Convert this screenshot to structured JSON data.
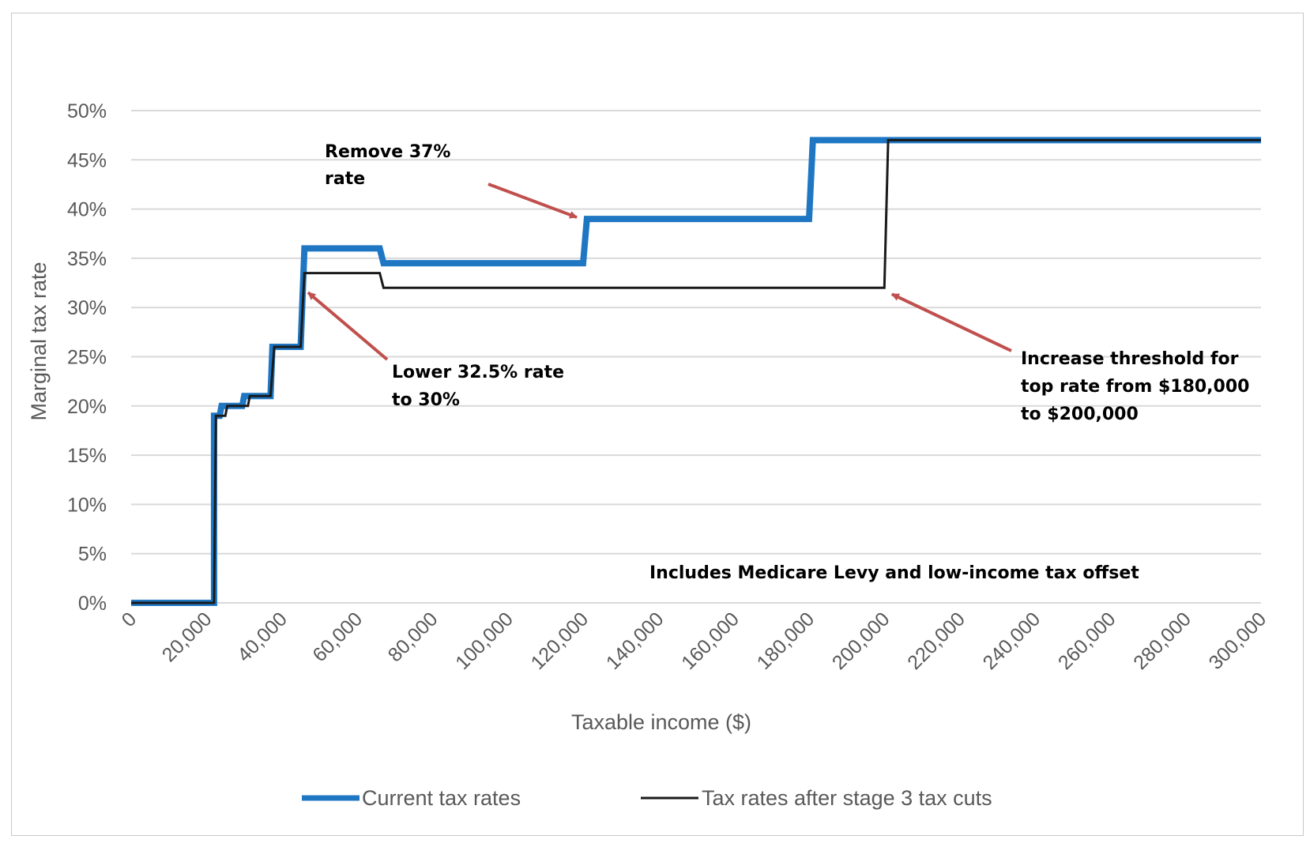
{
  "chart_data": {
    "type": "line",
    "title": "",
    "xlabel": "Taxable income ($)",
    "ylabel": "Marginal tax rate",
    "xlim": [
      0,
      300000
    ],
    "ylim": [
      0,
      0.5
    ],
    "x_ticks": [
      "0",
      "20,000",
      "40,000",
      "60,000",
      "80,000",
      "100,000",
      "120,000",
      "140,000",
      "160,000",
      "180,000",
      "200,000",
      "220,000",
      "240,000",
      "260,000",
      "280,000",
      "300,000"
    ],
    "x_tick_values": [
      0,
      20000,
      40000,
      60000,
      80000,
      100000,
      120000,
      140000,
      160000,
      180000,
      200000,
      220000,
      240000,
      260000,
      280000,
      300000
    ],
    "y_ticks": [
      "0%",
      "5%",
      "10%",
      "15%",
      "20%",
      "25%",
      "30%",
      "35%",
      "40%",
      "45%",
      "50%"
    ],
    "y_tick_values": [
      0,
      0.05,
      0.1,
      0.15,
      0.2,
      0.25,
      0.3,
      0.35,
      0.4,
      0.45,
      0.5
    ],
    "grid": true,
    "legend_position": "bottom",
    "series": [
      {
        "name": "Current tax rates",
        "color": "#1f77c4",
        "step": true,
        "points": [
          [
            0,
            0
          ],
          [
            22000,
            0
          ],
          [
            22000,
            0.19
          ],
          [
            23500,
            0.19
          ],
          [
            24000,
            0.2
          ],
          [
            29500,
            0.2
          ],
          [
            30000,
            0.21
          ],
          [
            37000,
            0.21
          ],
          [
            37500,
            0.26
          ],
          [
            45000,
            0.26
          ],
          [
            46000,
            0.36
          ],
          [
            66000,
            0.36
          ],
          [
            67000,
            0.345
          ],
          [
            120000,
            0.345
          ],
          [
            121000,
            0.39
          ],
          [
            180000,
            0.39
          ],
          [
            181000,
            0.47
          ],
          [
            300000,
            0.47
          ]
        ]
      },
      {
        "name": "Tax rates after stage 3 tax cuts",
        "color": "#1a1a1a",
        "step": true,
        "points": [
          [
            0,
            0
          ],
          [
            22000,
            0
          ],
          [
            22500,
            0.19
          ],
          [
            25000,
            0.19
          ],
          [
            25500,
            0.2
          ],
          [
            31000,
            0.2
          ],
          [
            31500,
            0.21
          ],
          [
            37000,
            0.21
          ],
          [
            38000,
            0.26
          ],
          [
            45000,
            0.26
          ],
          [
            46000,
            0.335
          ],
          [
            66000,
            0.335
          ],
          [
            67000,
            0.32
          ],
          [
            200000,
            0.32
          ],
          [
            201000,
            0.47
          ],
          [
            300000,
            0.47
          ]
        ]
      }
    ],
    "annotations": [
      {
        "lines": [
          "Remove 37%",
          "rate"
        ],
        "arrow_to_series": "Current tax rates",
        "arrow_to": [
          120000,
          0.39
        ]
      },
      {
        "lines": [
          "Lower 32.5% rate",
          "to 30%"
        ],
        "arrow_to_series": "Tax rates after stage 3 tax cuts",
        "arrow_to": [
          47000,
          0.32
        ]
      },
      {
        "lines": [
          "Increase threshold for",
          "top rate from $180,000",
          "to $200,000"
        ],
        "arrow_to_series": "Tax rates after stage 3 tax cuts",
        "arrow_to": [
          202000,
          0.32
        ]
      },
      {
        "lines": [
          "Includes Medicare Levy and low-income tax offset"
        ]
      }
    ],
    "arrow_color": "#c0504d"
  }
}
